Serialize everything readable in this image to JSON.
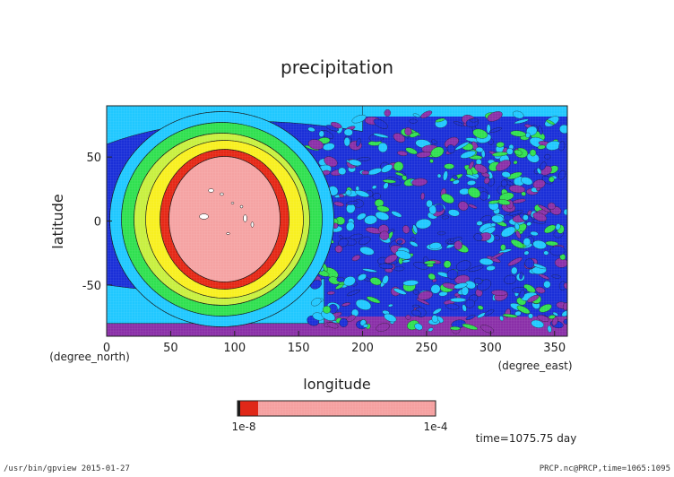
{
  "chart_data": {
    "type": "heatmap",
    "title": "precipitation",
    "xlabel": "longitude",
    "ylabel": "latitude",
    "x_unit": "(degree_east)",
    "y_unit": "(degree_north)",
    "xlim": [
      0,
      360
    ],
    "ylim": [
      -90,
      90
    ],
    "x_ticks": [
      0,
      50,
      100,
      150,
      200,
      250,
      300,
      350
    ],
    "y_ticks": [
      -50,
      0,
      50
    ],
    "colorbar": {
      "label_left": "1e-8",
      "label_right": "1e-4",
      "levels_hex": [
        "#1a1a1a",
        "#e02818",
        "#f5a0a0"
      ]
    },
    "contour_levels": [
      "#8a2fa8",
      "#1a2fd8",
      "#20c8ff",
      "#30e050",
      "#c8f040",
      "#f8f020",
      "#e52816",
      "#f5a3a3"
    ],
    "blob": {
      "center_lon": 90,
      "center_lat": 0,
      "description_color": "#f5a3a3"
    },
    "annotation": "time=1075.75 day"
  },
  "footer": {
    "left": "/usr/bin/gpview  2015-01-27",
    "right": "PRCP.nc@PRCP,time=1065:1095"
  }
}
